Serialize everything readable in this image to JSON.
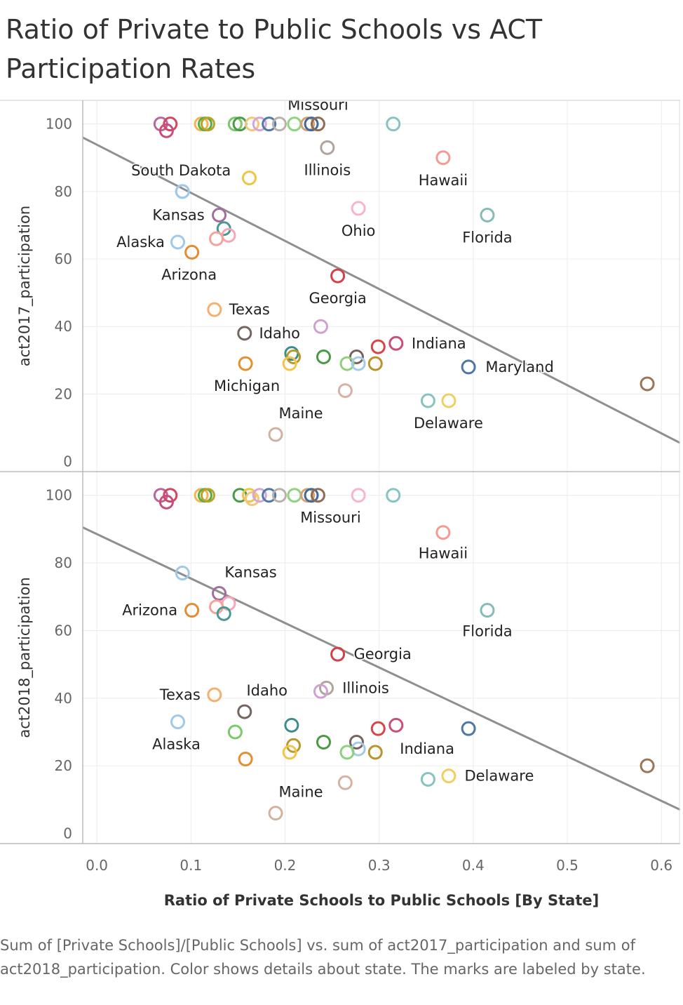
{
  "title": "Ratio of Private to Public Schools vs ACT Participation Rates",
  "caption": "Sum of [Private Schools]/[Public Schools] vs. sum of act2017_participation and sum of act2018_participation.  Color shows details about state.  The marks are labeled by state.",
  "chart_data": {
    "type": "scatter",
    "xlabel": "Ratio of Private Schools to Public Schools [By State]",
    "xlim": [
      -0.015,
      0.62
    ],
    "xticks": [
      "0.0",
      "0.1",
      "0.2",
      "0.3",
      "0.4",
      "0.5",
      "0.6"
    ],
    "xtick_values": [
      0.0,
      0.1,
      0.2,
      0.3,
      0.4,
      0.5,
      0.6
    ],
    "grid": true,
    "panels": [
      {
        "ylabel": "act2017_participation",
        "ylim": [
          -3,
          107
        ],
        "yticks": [
          "0",
          "20",
          "40",
          "60",
          "80",
          "100"
        ],
        "ytick_values": [
          0,
          20,
          40,
          60,
          80,
          100
        ],
        "trend": {
          "x": [
            -0.015,
            0.62
          ],
          "y": [
            96,
            5.5
          ]
        },
        "points": [
          {
            "x": 0.068,
            "y": 100,
            "color": "#b9679a"
          },
          {
            "x": 0.078,
            "y": 100,
            "color": "#d1475e"
          },
          {
            "x": 0.074,
            "y": 98,
            "color": "#c84c7c"
          },
          {
            "x": 0.111,
            "y": 100,
            "color": "#f3b44f"
          },
          {
            "x": 0.115,
            "y": 100,
            "color": "#5aaa46"
          },
          {
            "x": 0.118,
            "y": 100,
            "color": "#b8a42a"
          },
          {
            "x": 0.147,
            "y": 100,
            "color": "#7bc96a"
          },
          {
            "x": 0.152,
            "y": 100,
            "color": "#4a9b48"
          },
          {
            "x": 0.165,
            "y": 100,
            "color": "#f4c57d"
          },
          {
            "x": 0.173,
            "y": 100,
            "color": "#d7a5d3"
          },
          {
            "x": 0.183,
            "y": 100,
            "color": "#4f79a8"
          },
          {
            "x": 0.194,
            "y": 100,
            "color": "#bab0ac"
          },
          {
            "x": 0.21,
            "y": 100,
            "color": "#8fd37e"
          },
          {
            "x": 0.224,
            "y": 100,
            "color": "#d7a07a"
          },
          {
            "x": 0.228,
            "y": 100,
            "color": "#3d6a9e"
          },
          {
            "x": 0.235,
            "y": 100,
            "color": "#8e6c54",
            "label": "Missouri",
            "lx": 0.0,
            "ly": -27
          },
          {
            "x": 0.315,
            "y": 100,
            "color": "#87c4bf"
          },
          {
            "x": 0.245,
            "y": 93,
            "color": "#b2a49d",
            "label": "Illinois",
            "lx": 0,
            "ly": 32
          },
          {
            "x": 0.368,
            "y": 90,
            "color": "#f49a93",
            "label": "Hawaii",
            "lx": 0,
            "ly": 32
          },
          {
            "x": 0.162,
            "y": 84,
            "color": "#f1c543"
          },
          {
            "x": 0.091,
            "y": 80,
            "color": "#9ec9e8"
          },
          {
            "x": 0.278,
            "y": 75,
            "color": "#f7b5cc",
            "label": "Ohio",
            "lx": 0,
            "ly": 32
          },
          {
            "x": 0.415,
            "y": 73,
            "color": "#86bcb6",
            "label": "Florida",
            "lx": 0,
            "ly": 32
          },
          {
            "x": 0.13,
            "y": 73,
            "color": "#a16f9b",
            "label": "Kansas",
            "lx": -58,
            "ly": 0
          },
          {
            "x": 0.135,
            "y": 69,
            "color": "#499894"
          },
          {
            "x": 0.14,
            "y": 67,
            "color": "#f6a6b6"
          },
          {
            "x": 0.127,
            "y": 66,
            "color": "#f4a29a"
          },
          {
            "x": 0.086,
            "y": 65,
            "color": "#9dc9ec",
            "label": "Alaska",
            "lx": -53,
            "ly": 0
          },
          {
            "x": 0.101,
            "y": 62,
            "color": "#e68b32",
            "label": "Arizona",
            "lx": -4,
            "ly": 32
          },
          {
            "x": 0.256,
            "y": 55,
            "color": "#d43f48",
            "label": "Georgia",
            "lx": 0,
            "ly": 32
          },
          {
            "x": 0.125,
            "y": 45,
            "color": "#f5b06e",
            "label": "Texas",
            "lx": 50,
            "ly": 0
          },
          {
            "x": 0.238,
            "y": 40,
            "color": "#cfa1d0"
          },
          {
            "x": 0.157,
            "y": 38,
            "color": "#75655f",
            "label": "Idaho",
            "lx": 50,
            "ly": 0
          },
          {
            "x": 0.318,
            "y": 35,
            "color": "#c84f7a",
            "label": "Indiana",
            "lx": 61,
            "ly": 0
          },
          {
            "x": 0.299,
            "y": 34,
            "color": "#d64547"
          },
          {
            "x": 0.207,
            "y": 32,
            "color": "#3e8c88"
          },
          {
            "x": 0.209,
            "y": 31,
            "color": "#b89a2b"
          },
          {
            "x": 0.241,
            "y": 31,
            "color": "#4a9a45"
          },
          {
            "x": 0.276,
            "y": 31,
            "color": "#77625e"
          },
          {
            "x": 0.266,
            "y": 29,
            "color": "#8fd07c"
          },
          {
            "x": 0.278,
            "y": 29,
            "color": "#a3cbe8"
          },
          {
            "x": 0.296,
            "y": 29,
            "color": "#b8942a"
          },
          {
            "x": 0.158,
            "y": 29,
            "color": "#e5902e",
            "label": "Michigan",
            "lx": 2,
            "ly": 32
          },
          {
            "x": 0.205,
            "y": 29,
            "color": "#f2c54a"
          },
          {
            "x": 0.395,
            "y": 28,
            "color": "#4e76a6",
            "label": "Maryland",
            "lx": 73,
            "ly": 0
          },
          {
            "x": 0.264,
            "y": 21,
            "color": "#d7b2a3"
          },
          {
            "x": 0.352,
            "y": 18,
            "color": "#87c3bf",
            "label": "Delaware",
            "lx": 29,
            "ly": 32
          },
          {
            "x": 0.374,
            "y": 18,
            "color": "#f1ce63"
          },
          {
            "x": 0.19,
            "y": 8,
            "color": "#d1b29f",
            "label": "Maine",
            "lx": 36,
            "ly": -30
          },
          {
            "x": 0.585,
            "y": 23,
            "color": "#9c7557"
          },
          {
            "x": 0.091,
            "y": 80,
            "color": "#9ec9e8",
            "label": "South Dakota",
            "lx": -2,
            "ly": -30
          }
        ]
      },
      {
        "ylabel": "act2018_participation",
        "ylim": [
          -3,
          107
        ],
        "yticks": [
          "0",
          "20",
          "40",
          "60",
          "80",
          "100"
        ],
        "ytick_values": [
          0,
          20,
          40,
          60,
          80,
          100
        ],
        "trend": {
          "x": [
            -0.015,
            0.62
          ],
          "y": [
            90.5,
            7
          ]
        },
        "points": [
          {
            "x": 0.068,
            "y": 100,
            "color": "#b9679a"
          },
          {
            "x": 0.078,
            "y": 100,
            "color": "#d1475e"
          },
          {
            "x": 0.074,
            "y": 98,
            "color": "#c84c7c"
          },
          {
            "x": 0.111,
            "y": 100,
            "color": "#f3b44f"
          },
          {
            "x": 0.115,
            "y": 100,
            "color": "#5aaa46"
          },
          {
            "x": 0.118,
            "y": 100,
            "color": "#b8a42a"
          },
          {
            "x": 0.152,
            "y": 100,
            "color": "#4a9b48"
          },
          {
            "x": 0.162,
            "y": 100,
            "color": "#f1c543"
          },
          {
            "x": 0.165,
            "y": 99,
            "color": "#f4c57d"
          },
          {
            "x": 0.173,
            "y": 100,
            "color": "#d7a5d3"
          },
          {
            "x": 0.183,
            "y": 100,
            "color": "#4f79a8"
          },
          {
            "x": 0.194,
            "y": 100,
            "color": "#bab0ac"
          },
          {
            "x": 0.21,
            "y": 100,
            "color": "#8fd37e"
          },
          {
            "x": 0.224,
            "y": 100,
            "color": "#d7a07a"
          },
          {
            "x": 0.228,
            "y": 100,
            "color": "#3d6a9e"
          },
          {
            "x": 0.235,
            "y": 100,
            "color": "#8e6c54",
            "label": "Missouri",
            "lx": 18,
            "ly": 32
          },
          {
            "x": 0.278,
            "y": 100,
            "color": "#f7b5cc"
          },
          {
            "x": 0.315,
            "y": 100,
            "color": "#87c4bf"
          },
          {
            "x": 0.368,
            "y": 89,
            "color": "#f49a93",
            "label": "Hawaii",
            "lx": 0,
            "ly": 30
          },
          {
            "x": 0.091,
            "y": 77,
            "color": "#9ec9e8"
          },
          {
            "x": 0.13,
            "y": 71,
            "color": "#a16f9b",
            "label": "Kansas",
            "lx": 45,
            "ly": -30
          },
          {
            "x": 0.14,
            "y": 68,
            "color": "#f6a6b6"
          },
          {
            "x": 0.127,
            "y": 67,
            "color": "#f4a29a"
          },
          {
            "x": 0.135,
            "y": 65,
            "color": "#499894"
          },
          {
            "x": 0.101,
            "y": 66,
            "color": "#e68b32",
            "label": "Arizona",
            "lx": -60,
            "ly": 0
          },
          {
            "x": 0.415,
            "y": 66,
            "color": "#86bcb6",
            "label": "Florida",
            "lx": 0,
            "ly": 30
          },
          {
            "x": 0.256,
            "y": 53,
            "color": "#d43f48",
            "label": "Georgia",
            "lx": 64,
            "ly": 0
          },
          {
            "x": 0.244,
            "y": 43,
            "color": "#b2a49d",
            "label": "Illinois",
            "lx": 56,
            "ly": 0
          },
          {
            "x": 0.238,
            "y": 42,
            "color": "#cfa1d0"
          },
          {
            "x": 0.125,
            "y": 41,
            "color": "#f5b06e",
            "label": "Texas",
            "lx": -49,
            "ly": 0
          },
          {
            "x": 0.157,
            "y": 36,
            "color": "#75655f",
            "label": "Idaho",
            "lx": 32,
            "ly": -30
          },
          {
            "x": 0.086,
            "y": 33,
            "color": "#9dc9ec",
            "label": "Alaska",
            "lx": -2,
            "ly": 32
          },
          {
            "x": 0.207,
            "y": 32,
            "color": "#3e8c88"
          },
          {
            "x": 0.318,
            "y": 32,
            "color": "#c84f7a"
          },
          {
            "x": 0.299,
            "y": 31,
            "color": "#d64547"
          },
          {
            "x": 0.395,
            "y": 31,
            "color": "#4e76a6"
          },
          {
            "x": 0.147,
            "y": 30,
            "color": "#7bc96a"
          },
          {
            "x": 0.241,
            "y": 27,
            "color": "#4a9a45"
          },
          {
            "x": 0.276,
            "y": 27,
            "color": "#77625e"
          },
          {
            "x": 0.209,
            "y": 26,
            "color": "#b89a2b"
          },
          {
            "x": 0.278,
            "y": 25,
            "color": "#a3cbe8",
            "label": "Indiana",
            "lx": 98,
            "ly": 0
          },
          {
            "x": 0.266,
            "y": 24,
            "color": "#8fd07c"
          },
          {
            "x": 0.205,
            "y": 24,
            "color": "#f2c54a"
          },
          {
            "x": 0.296,
            "y": 24,
            "color": "#b8942a"
          },
          {
            "x": 0.158,
            "y": 22,
            "color": "#e5902e"
          },
          {
            "x": 0.374,
            "y": 17,
            "color": "#f1ce63",
            "label": "Delaware",
            "lx": 72,
            "ly": 0
          },
          {
            "x": 0.352,
            "y": 16,
            "color": "#87c3bf"
          },
          {
            "x": 0.264,
            "y": 15,
            "color": "#d7b2a3"
          },
          {
            "x": 0.19,
            "y": 6,
            "color": "#d1b29f",
            "label": "Maine",
            "lx": 36,
            "ly": -30
          },
          {
            "x": 0.585,
            "y": 20,
            "color": "#9c7557"
          }
        ]
      }
    ]
  }
}
